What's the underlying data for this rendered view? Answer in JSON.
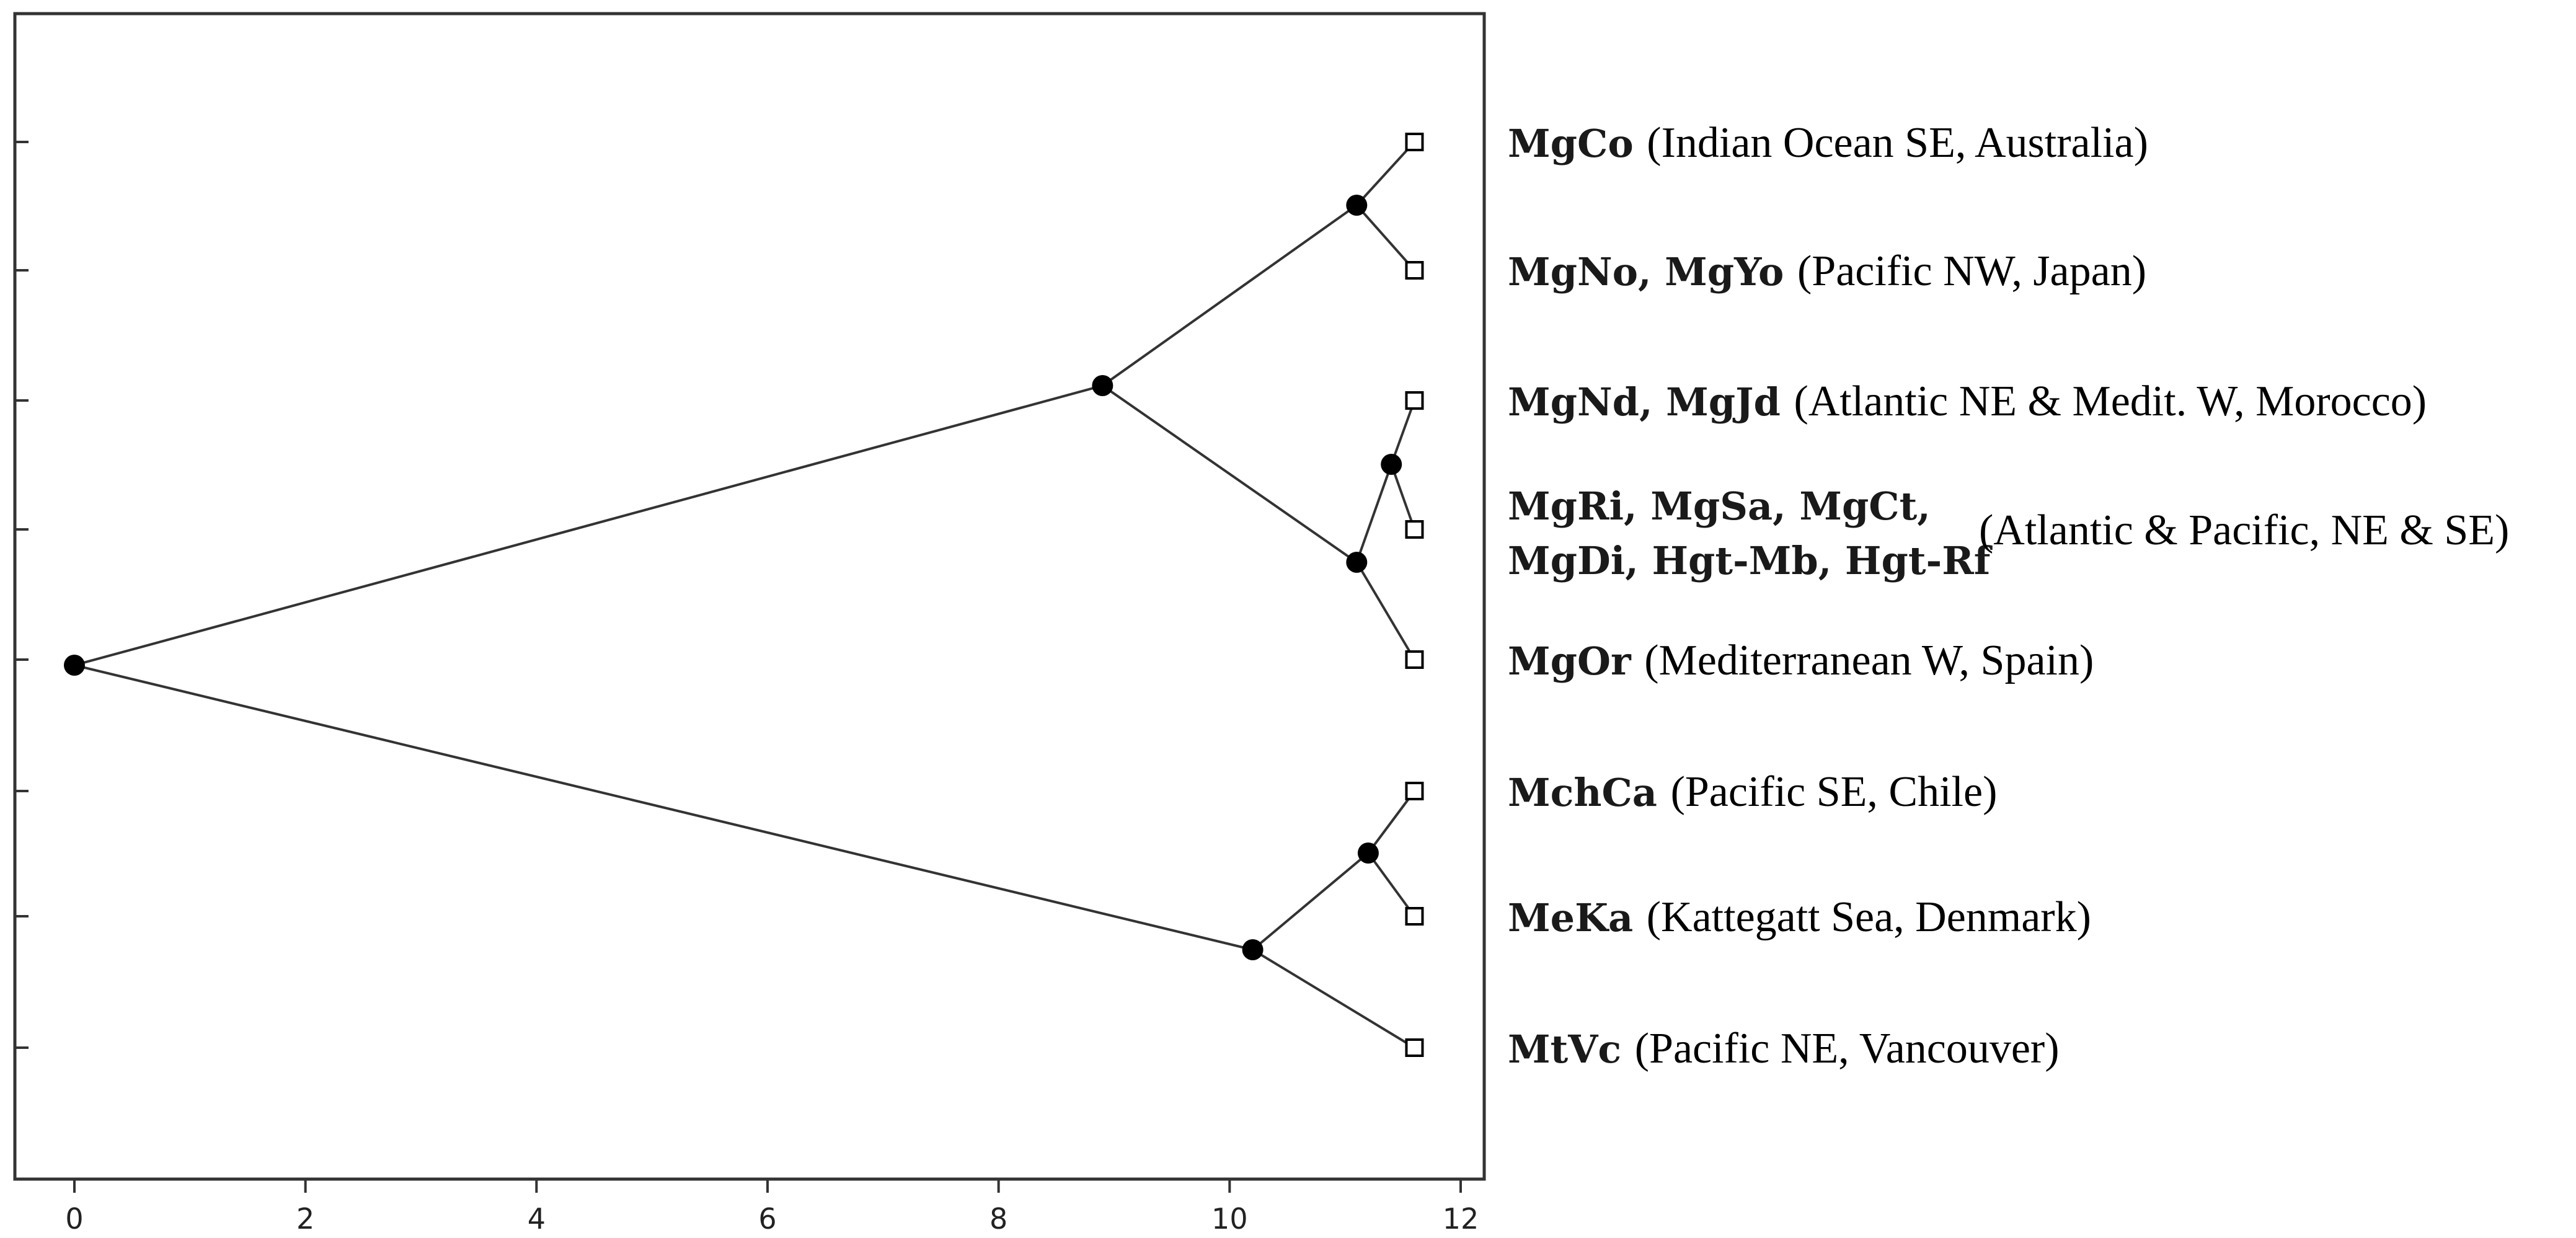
{
  "tree": {
    "x_axis": {
      "min": 0,
      "max": 12,
      "ticks": [
        "0",
        "2",
        "4",
        "6",
        "8",
        "10",
        "12"
      ]
    },
    "leaves": [
      {
        "id": "l1",
        "lines": [
          "MgCo"
        ],
        "location": "(Indian Ocean SE, Australia)"
      },
      {
        "id": "l2",
        "lines": [
          "MgNo, MgYo"
        ],
        "location": "(Pacific NW, Japan)"
      },
      {
        "id": "l3",
        "lines": [
          "MgNd, MgJd"
        ],
        "location": "(Atlantic NE & Medit. W, Morocco)"
      },
      {
        "id": "l4",
        "lines": [
          "MgRi, MgSa, MgCt,",
          "MgDi, Hgt-Mb, Hgt-Rf"
        ],
        "location": "(Atlantic & Pacific, NE & SE)"
      },
      {
        "id": "l5",
        "lines": [
          "MgOr"
        ],
        "location": "(Mediterranean W, Spain)"
      },
      {
        "id": "l6",
        "lines": [
          "MchCa"
        ],
        "location": "(Pacific SE, Chile)"
      },
      {
        "id": "l7",
        "lines": [
          "MeKa"
        ],
        "location": "(Kattegatt Sea, Denmark)"
      },
      {
        "id": "l8",
        "lines": [
          "MtVc"
        ],
        "location": "(Pacific NE, Vancouver)"
      }
    ],
    "internal_nodes": [
      {
        "id": "root",
        "x": 0
      },
      {
        "id": "n_a",
        "x": 8.9
      },
      {
        "id": "n_b",
        "x": 11.1
      },
      {
        "id": "n_c",
        "x": 11.1
      },
      {
        "id": "n_d",
        "x": 11.4
      },
      {
        "id": "n_e",
        "x": 10.2
      },
      {
        "id": "n_f",
        "x": 11.2
      }
    ],
    "edges": [
      [
        "root",
        "n_a"
      ],
      [
        "root",
        "n_e"
      ],
      [
        "n_a",
        "n_b"
      ],
      [
        "n_a",
        "n_c"
      ],
      [
        "n_b",
        "l1"
      ],
      [
        "n_b",
        "l2"
      ],
      [
        "n_c",
        "n_d"
      ],
      [
        "n_c",
        "l5"
      ],
      [
        "n_d",
        "l3"
      ],
      [
        "n_d",
        "l4"
      ],
      [
        "n_e",
        "n_f"
      ],
      [
        "n_e",
        "l8"
      ],
      [
        "n_f",
        "l6"
      ],
      [
        "n_f",
        "l7"
      ]
    ],
    "leaf_x": 11.6,
    "colors": {
      "line": "#333333",
      "node": "#000000",
      "frame": "#333333"
    }
  }
}
